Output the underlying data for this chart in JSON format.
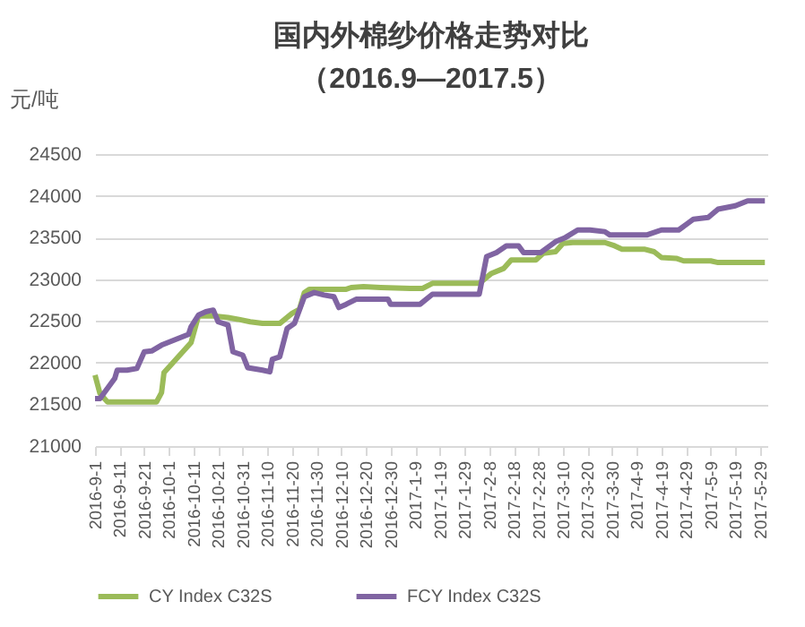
{
  "chart_data": {
    "type": "line",
    "title": "国内外棉纱价格走势对比",
    "subtitle": "（2016.9—2017.5）",
    "ylabel": "元/吨",
    "xlim": [
      "2016-09-01",
      "2017-06-01"
    ],
    "xticks": [
      {
        "value": "2016-09-01",
        "label": "2016-9-1"
      },
      {
        "value": "2016-09-11",
        "label": "2016-9-11"
      },
      {
        "value": "2016-09-21",
        "label": "2016-9-21"
      },
      {
        "value": "2016-10-01",
        "label": "2016-10-1"
      },
      {
        "value": "2016-10-11",
        "label": "2016-10-11"
      },
      {
        "value": "2016-10-21",
        "label": "2016-10-21"
      },
      {
        "value": "2016-10-31",
        "label": "2016-10-31"
      },
      {
        "value": "2016-11-10",
        "label": "2016-11-10"
      },
      {
        "value": "2016-11-20",
        "label": "2016-11-20"
      },
      {
        "value": "2016-11-30",
        "label": "2016-11-30"
      },
      {
        "value": "2016-12-10",
        "label": "2016-12-10"
      },
      {
        "value": "2016-12-20",
        "label": "2016-12-20"
      },
      {
        "value": "2016-12-30",
        "label": "2016-12-30"
      },
      {
        "value": "2017-01-09",
        "label": "2017-1-9"
      },
      {
        "value": "2017-01-19",
        "label": "2017-1-19"
      },
      {
        "value": "2017-01-29",
        "label": "2017-1-29"
      },
      {
        "value": "2017-02-08",
        "label": "2017-2-8"
      },
      {
        "value": "2017-02-18",
        "label": "2017-2-18"
      },
      {
        "value": "2017-02-28",
        "label": "2017-2-28"
      },
      {
        "value": "2017-03-10",
        "label": "2017-3-10"
      },
      {
        "value": "2017-03-20",
        "label": "2017-3-20"
      },
      {
        "value": "2017-03-30",
        "label": "2017-3-30"
      },
      {
        "value": "2017-04-09",
        "label": "2017-4-9"
      },
      {
        "value": "2017-04-19",
        "label": "2017-4-19"
      },
      {
        "value": "2017-04-29",
        "label": "2017-4-29"
      },
      {
        "value": "2017-05-09",
        "label": "2017-5-9"
      },
      {
        "value": "2017-05-19",
        "label": "2017-5-19"
      },
      {
        "value": "2017-05-29",
        "label": "2017-5-29"
      }
    ],
    "ylim": [
      21000,
      24500
    ],
    "yticks": [
      21000,
      21500,
      22000,
      22500,
      23000,
      23500,
      24000,
      24500
    ],
    "grid": "y",
    "legend": "bottom",
    "series": [
      {
        "name": "CY Index C32S",
        "color": "#9bbb59",
        "x": [
          "2016-09-01",
          "2016-09-03",
          "2016-09-06",
          "2016-09-26",
          "2016-09-28",
          "2016-09-29",
          "2016-10-10",
          "2016-10-13",
          "2016-10-19",
          "2016-10-25",
          "2016-10-29",
          "2016-11-03",
          "2016-11-08",
          "2016-11-15",
          "2016-11-20",
          "2016-11-23",
          "2016-11-25",
          "2016-11-27",
          "2016-12-12",
          "2016-12-14",
          "2016-12-19",
          "2016-12-26",
          "2017-01-07",
          "2017-01-12",
          "2017-01-16",
          "2017-02-04",
          "2017-02-09",
          "2017-02-14",
          "2017-02-17",
          "2017-02-27",
          "2017-03-02",
          "2017-03-07",
          "2017-03-10",
          "2017-03-14",
          "2017-03-27",
          "2017-03-31",
          "2017-04-03",
          "2017-04-12",
          "2017-04-16",
          "2017-04-19",
          "2017-04-25",
          "2017-04-28",
          "2017-05-09",
          "2017-05-12",
          "2017-05-31"
        ],
        "values": [
          21850,
          21630,
          21530,
          21530,
          21640,
          21880,
          22240,
          22560,
          22560,
          22540,
          22520,
          22490,
          22470,
          22470,
          22590,
          22640,
          22840,
          22880,
          22880,
          22900,
          22910,
          22900,
          22890,
          22890,
          22950,
          22950,
          23070,
          23130,
          23230,
          23230,
          23310,
          23330,
          23430,
          23440,
          23440,
          23400,
          23360,
          23360,
          23330,
          23260,
          23250,
          23220,
          23220,
          23200,
          23200
        ]
      },
      {
        "name": "FCY Index C32S",
        "color": "#8064a2",
        "x": [
          "2016-09-01",
          "2016-09-03",
          "2016-09-09",
          "2016-09-10",
          "2016-09-14",
          "2016-09-18",
          "2016-09-21",
          "2016-09-24",
          "2016-09-28",
          "2016-10-09",
          "2016-10-10",
          "2016-10-13",
          "2016-10-16",
          "2016-10-19",
          "2016-10-21",
          "2016-10-25",
          "2016-10-27",
          "2016-10-31",
          "2016-11-02",
          "2016-11-08",
          "2016-11-11",
          "2016-11-12",
          "2016-11-15",
          "2016-11-18",
          "2016-11-21",
          "2016-11-25",
          "2016-11-29",
          "2016-12-03",
          "2016-12-07",
          "2016-12-09",
          "2016-12-12",
          "2016-12-16",
          "2016-12-29",
          "2016-12-30",
          "2017-01-07",
          "2017-01-11",
          "2017-01-16",
          "2017-02-04",
          "2017-02-07",
          "2017-02-11",
          "2017-02-15",
          "2017-02-20",
          "2017-02-22",
          "2017-03-01",
          "2017-03-07",
          "2017-03-11",
          "2017-03-16",
          "2017-03-21",
          "2017-03-27",
          "2017-03-29",
          "2017-04-13",
          "2017-04-19",
          "2017-04-26",
          "2017-05-02",
          "2017-05-08",
          "2017-05-12",
          "2017-05-19",
          "2017-05-24",
          "2017-05-31"
        ],
        "values": [
          21570,
          21570,
          21810,
          21910,
          21910,
          21930,
          22130,
          22140,
          22210,
          22340,
          22430,
          22570,
          22610,
          22630,
          22490,
          22450,
          22130,
          22090,
          21940,
          21910,
          21890,
          22040,
          22070,
          22410,
          22470,
          22790,
          22840,
          22810,
          22790,
          22660,
          22700,
          22760,
          22760,
          22700,
          22700,
          22700,
          22820,
          22820,
          23270,
          23320,
          23400,
          23400,
          23320,
          23320,
          23450,
          23500,
          23590,
          23590,
          23570,
          23530,
          23530,
          23590,
          23590,
          23720,
          23740,
          23840,
          23880,
          23940,
          23940
        ]
      }
    ]
  }
}
